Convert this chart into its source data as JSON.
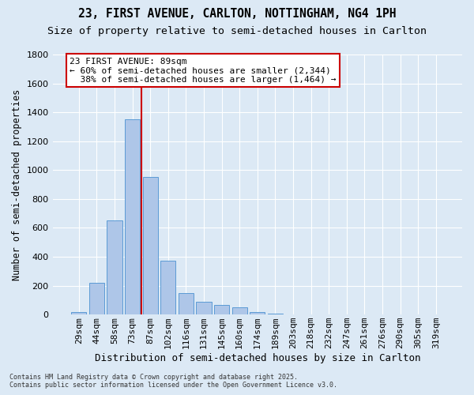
{
  "title_line1": "23, FIRST AVENUE, CARLTON, NOTTINGHAM, NG4 1PH",
  "title_line2": "Size of property relative to semi-detached houses in Carlton",
  "xlabel": "Distribution of semi-detached houses by size in Carlton",
  "ylabel": "Number of semi-detached properties",
  "categories": [
    "29sqm",
    "44sqm",
    "58sqm",
    "73sqm",
    "87sqm",
    "102sqm",
    "116sqm",
    "131sqm",
    "145sqm",
    "160sqm",
    "174sqm",
    "189sqm",
    "203sqm",
    "218sqm",
    "232sqm",
    "247sqm",
    "261sqm",
    "276sqm",
    "290sqm",
    "305sqm",
    "319sqm"
  ],
  "values": [
    20,
    220,
    650,
    1350,
    950,
    375,
    150,
    90,
    65,
    50,
    20,
    5,
    0,
    0,
    0,
    0,
    0,
    0,
    0,
    0,
    0
  ],
  "bar_color": "#aec6e8",
  "bar_edge_color": "#5b9bd5",
  "vline_color": "#cc0000",
  "vline_x": 3.5,
  "annotation_line1": "23 FIRST AVENUE: 89sqm",
  "annotation_line2": "← 60% of semi-detached houses are smaller (2,344)",
  "annotation_line3": "  38% of semi-detached houses are larger (1,464) →",
  "annotation_box_color": "#ffffff",
  "annotation_box_edge": "#cc0000",
  "ylim": [
    0,
    1800
  ],
  "yticks": [
    0,
    200,
    400,
    600,
    800,
    1000,
    1200,
    1400,
    1600,
    1800
  ],
  "background_color": "#dce9f5",
  "plot_bg_color": "#dce9f5",
  "footer_text": "Contains HM Land Registry data © Crown copyright and database right 2025.\nContains public sector information licensed under the Open Government Licence v3.0.",
  "title_fontsize": 10.5,
  "subtitle_fontsize": 9.5,
  "tick_fontsize": 8,
  "ylabel_fontsize": 8.5,
  "xlabel_fontsize": 9,
  "annotation_fontsize": 8,
  "footer_fontsize": 6
}
